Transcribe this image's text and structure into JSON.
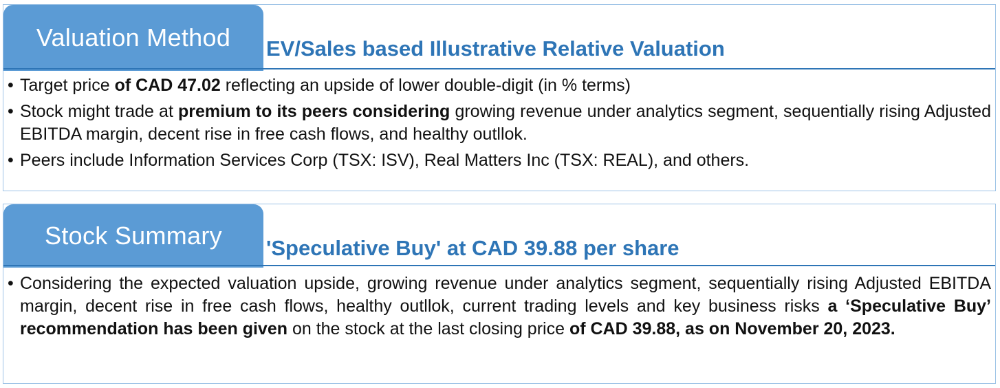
{
  "valuation": {
    "tab_label": "Valuation Method",
    "heading": "EV/Sales based Illustrative Relative Valuation",
    "bullets": [
      {
        "segments": [
          {
            "text": "Target price ",
            "bold": false
          },
          {
            "text": "of CAD 47.02",
            "bold": true
          },
          {
            "text": " reflecting an upside of lower double-digit (in % terms)",
            "bold": false
          }
        ]
      },
      {
        "segments": [
          {
            "text": "Stock might trade at ",
            "bold": false
          },
          {
            "text": "premium to its peers considering",
            "bold": true
          },
          {
            "text": " growing revenue under analytics segment, sequentially rising Adjusted EBITDA margin, decent rise in free cash flows, and healthy outllok.",
            "bold": false
          }
        ]
      },
      {
        "segments": [
          {
            "text": "Peers include Information Services Corp (TSX: ISV), Real Matters Inc (TSX: REAL), and others.",
            "bold": false
          }
        ]
      }
    ]
  },
  "summary": {
    "tab_label": "Stock Summary",
    "heading": "'Speculative Buy' at CAD 39.88 per share",
    "bullets": [
      {
        "segments": [
          {
            "text": "Considering the expected valuation upside, growing revenue under analytics segment, sequentially rising Adjusted EBITDA margin, decent rise in free cash flows, healthy outllok, current trading levels and key business risks ",
            "bold": false
          },
          {
            "text": "a ‘Speculative Buy’ recommendation has been given",
            "bold": true
          },
          {
            "text": " on the stock at the last closing price ",
            "bold": false
          },
          {
            "text": "of CAD 39.88, as on November 20, 2023.",
            "bold": true
          }
        ]
      }
    ]
  },
  "bullet_glyph": "•",
  "colors": {
    "tab_fill": "#5b9bd5",
    "heading_text": "#2e75b6",
    "rule": "#2e75b6",
    "border": "#9dc3e6"
  }
}
